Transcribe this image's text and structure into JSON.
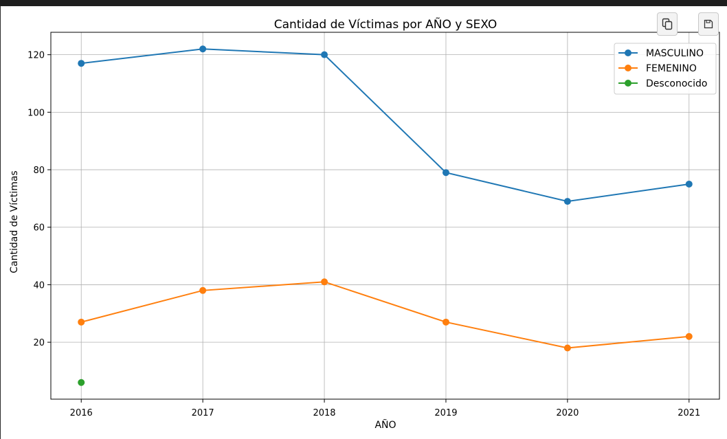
{
  "toolbar": {
    "copy_icon": "copy-icon",
    "save_icon": "floppy-disk-icon"
  },
  "chart_data": {
    "type": "line",
    "title": "Cantidad de Víctimas por AÑO y SEXO",
    "xlabel": "AÑO",
    "ylabel": "Cantidad de Víctimas",
    "x": [
      2016,
      2017,
      2018,
      2019,
      2020,
      2021
    ],
    "xlim": [
      2015.75,
      2021.25
    ],
    "ylim": [
      0.2,
      127.8
    ],
    "yticks": [
      20,
      40,
      60,
      80,
      100,
      120
    ],
    "grid": true,
    "legend_position": "top-right",
    "marker": "circle",
    "series": [
      {
        "name": "MASCULINO",
        "color": "#1f77b4",
        "x": [
          2016,
          2017,
          2018,
          2019,
          2020,
          2021
        ],
        "values": [
          117,
          122,
          120,
          79,
          69,
          75
        ]
      },
      {
        "name": "FEMENINO",
        "color": "#ff7f0e",
        "x": [
          2016,
          2017,
          2018,
          2019,
          2020,
          2021
        ],
        "values": [
          27,
          38,
          41,
          27,
          18,
          22
        ]
      },
      {
        "name": "Desconocido",
        "color": "#2ca02c",
        "x": [
          2016
        ],
        "values": [
          6
        ]
      }
    ]
  }
}
